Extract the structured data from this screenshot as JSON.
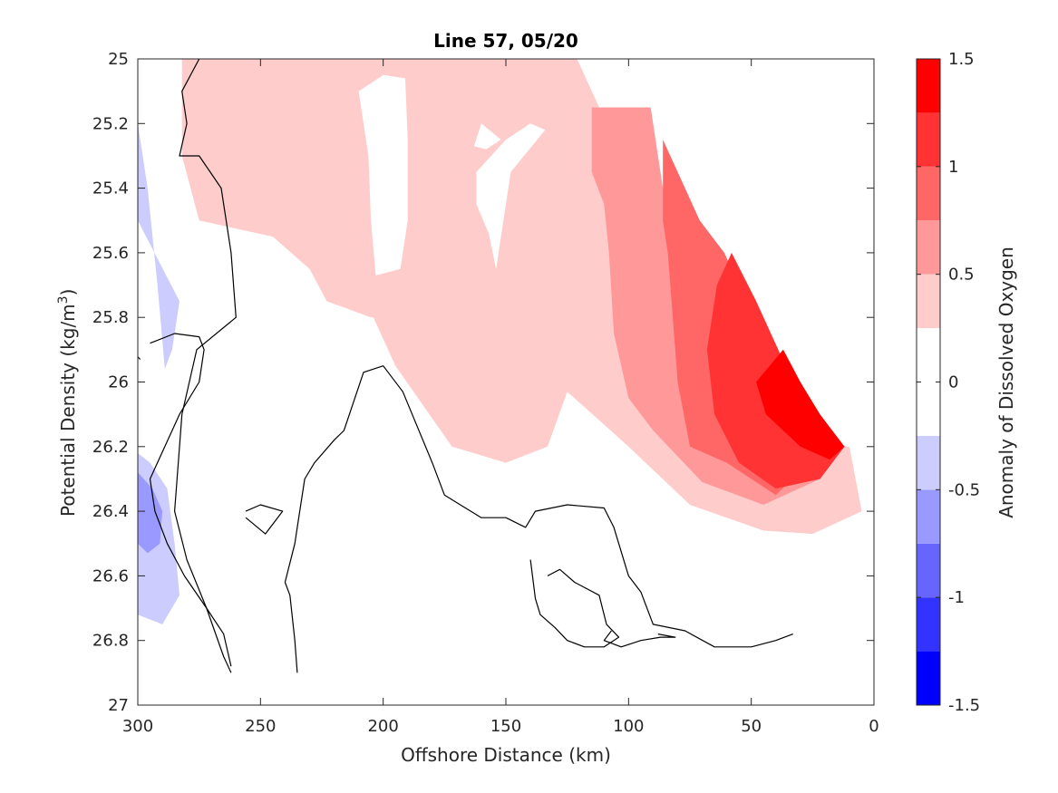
{
  "chart_data": {
    "type": "contour",
    "title": "Line 57, 05/20",
    "xlabel": "Offshore Distance (km)",
    "ylabel_main": "Potential Density (kg/m",
    "ylabel_sup": "3",
    "ylabel_tail": ")",
    "xlim": [
      300,
      0
    ],
    "ylim": [
      25,
      27
    ],
    "x_reversed": true,
    "y_reversed": true,
    "grid": false,
    "xticks": [
      300,
      250,
      200,
      150,
      100,
      50,
      0
    ],
    "xtick_labels": [
      "300",
      "250",
      "200",
      "150",
      "100",
      "50",
      "0"
    ],
    "yticks": [
      25,
      25.2,
      25.4,
      25.6,
      25.8,
      26,
      26.2,
      26.4,
      26.6,
      26.8,
      27
    ],
    "ytick_labels": [
      "25",
      "25.2",
      "25.4",
      "25.6",
      "25.8",
      "26",
      "26.2",
      "26.4",
      "26.6",
      "26.8",
      "27"
    ],
    "colorbar": {
      "label": "Anomaly of Dissolved Oxygen",
      "clim": [
        -1.5,
        1.5
      ],
      "ticks": [
        1.5,
        1,
        0.5,
        0,
        -0.5,
        -1,
        -1.5
      ],
      "tick_labels": [
        "1.5",
        "1",
        "0.5",
        "0",
        "-0.5",
        "-1",
        "-1.5"
      ],
      "levels": [
        -1.5,
        -1.25,
        -1.0,
        -0.75,
        -0.5,
        -0.25,
        0.25,
        0.5,
        0.75,
        1.0,
        1.25,
        1.5
      ],
      "colors": [
        "#0000ff",
        "#3333ff",
        "#6666ff",
        "#9999ff",
        "#ccccff",
        "#ffffff",
        "#ffcccc",
        "#ff9999",
        "#ff6666",
        "#ff3333",
        "#ff0000"
      ]
    },
    "filled_regions": [
      {
        "color": "#ccccff",
        "points": [
          [
            300,
            25.2
          ],
          [
            296,
            25.4
          ],
          [
            292,
            25.7
          ],
          [
            289,
            25.96
          ],
          [
            286,
            25.9
          ],
          [
            283,
            25.75
          ],
          [
            300,
            25.5
          ]
        ]
      },
      {
        "color": "#ccccff",
        "points": [
          [
            300,
            26.22
          ],
          [
            295,
            26.25
          ],
          [
            288,
            26.33
          ],
          [
            285,
            26.5
          ],
          [
            283,
            26.66
          ],
          [
            290,
            26.75
          ],
          [
            300,
            26.72
          ]
        ]
      },
      {
        "color": "#9999ff",
        "points": [
          [
            300,
            26.28
          ],
          [
            294,
            26.33
          ],
          [
            290,
            26.4
          ],
          [
            291,
            26.5
          ],
          [
            296,
            26.53
          ],
          [
            300,
            26.5
          ]
        ]
      },
      {
        "color": "#ffcccc",
        "points": [
          [
            282,
            25.0
          ],
          [
            121,
            25.0
          ],
          [
            112,
            25.15
          ],
          [
            96,
            25.4
          ],
          [
            80,
            25.7
          ],
          [
            65,
            25.9
          ],
          [
            50,
            26.05
          ],
          [
            33,
            26.2
          ],
          [
            10,
            26.2
          ],
          [
            5,
            26.4
          ],
          [
            25,
            26.47
          ],
          [
            45,
            26.46
          ],
          [
            75,
            26.38
          ],
          [
            100,
            26.2
          ],
          [
            125,
            26.03
          ],
          [
            133,
            26.2
          ],
          [
            150,
            26.25
          ],
          [
            172,
            26.2
          ],
          [
            195,
            25.95
          ],
          [
            210,
            25.7
          ],
          [
            213,
            25.35
          ],
          [
            208,
            25.05
          ],
          [
            196,
            25.05
          ],
          [
            190,
            25.2
          ],
          [
            195,
            25.8
          ],
          [
            205,
            25.8
          ],
          [
            223,
            25.75
          ],
          [
            230,
            25.65
          ],
          [
            245,
            25.55
          ],
          [
            275,
            25.5
          ],
          [
            282,
            25.3
          ]
        ]
      },
      {
        "color": "#ffffff",
        "points": [
          [
            191,
            25.06
          ],
          [
            200,
            25.05
          ],
          [
            210,
            25.1
          ],
          [
            206,
            25.3
          ],
          [
            205,
            25.5
          ],
          [
            203,
            25.67
          ],
          [
            193,
            25.65
          ],
          [
            190,
            25.5
          ],
          [
            190,
            25.25
          ]
        ]
      },
      {
        "color": "#ffffff",
        "points": [
          [
            134,
            25.22
          ],
          [
            148,
            25.35
          ],
          [
            154,
            25.65
          ],
          [
            157,
            25.54
          ],
          [
            162,
            25.45
          ],
          [
            162,
            25.35
          ],
          [
            150,
            25.25
          ],
          [
            140,
            25.2
          ]
        ]
      },
      {
        "color": "#ffffff",
        "points": [
          [
            158,
            25.28
          ],
          [
            152,
            25.25
          ],
          [
            160,
            25.2
          ],
          [
            163,
            25.27
          ]
        ]
      },
      {
        "color": "#ff9999",
        "points": [
          [
            115,
            25.15
          ],
          [
            91,
            25.15
          ],
          [
            86,
            25.4
          ],
          [
            78,
            25.55
          ],
          [
            70,
            25.75
          ],
          [
            60,
            25.96
          ],
          [
            47,
            26.1
          ],
          [
            35,
            26.2
          ],
          [
            22,
            26.3
          ],
          [
            45,
            26.38
          ],
          [
            70,
            26.31
          ],
          [
            90,
            26.15
          ],
          [
            100,
            26.05
          ],
          [
            106,
            25.85
          ],
          [
            108,
            25.6
          ],
          [
            110,
            25.45
          ],
          [
            115,
            25.35
          ]
        ]
      },
      {
        "color": "#ff6666",
        "points": [
          [
            86,
            25.25
          ],
          [
            77,
            25.4
          ],
          [
            71,
            25.5
          ],
          [
            61,
            25.6
          ],
          [
            52,
            25.75
          ],
          [
            42,
            25.95
          ],
          [
            32,
            26.1
          ],
          [
            20,
            26.2
          ],
          [
            40,
            26.35
          ],
          [
            60,
            26.25
          ],
          [
            75,
            26.2
          ],
          [
            80,
            26.0
          ],
          [
            82,
            25.8
          ],
          [
            84,
            25.6
          ],
          [
            86,
            25.5
          ]
        ]
      },
      {
        "color": "#ff3333",
        "points": [
          [
            58,
            25.6
          ],
          [
            48,
            25.75
          ],
          [
            36,
            25.95
          ],
          [
            25,
            26.1
          ],
          [
            12,
            26.2
          ],
          [
            22,
            26.3
          ],
          [
            40,
            26.33
          ],
          [
            55,
            26.25
          ],
          [
            65,
            26.1
          ],
          [
            68,
            25.9
          ],
          [
            64,
            25.7
          ]
        ]
      },
      {
        "color": "#ff0000",
        "points": [
          [
            37,
            25.9
          ],
          [
            30,
            26.0
          ],
          [
            22,
            26.1
          ],
          [
            12,
            26.2
          ],
          [
            18,
            26.24
          ],
          [
            30,
            26.2
          ],
          [
            44,
            26.1
          ],
          [
            48,
            26.0
          ]
        ]
      }
    ],
    "contours_zero": [
      {
        "points": [
          [
            275,
            25.0
          ],
          [
            282,
            25.1
          ],
          [
            280,
            25.2
          ],
          [
            283,
            25.3
          ],
          [
            275,
            25.3
          ],
          [
            266,
            25.4
          ],
          [
            262,
            25.6
          ],
          [
            260,
            25.8
          ],
          [
            276,
            25.9
          ],
          [
            282,
            26.1
          ],
          [
            284,
            26.3
          ],
          [
            285,
            26.4
          ],
          [
            280,
            26.55
          ],
          [
            272,
            26.7
          ],
          [
            265,
            26.85
          ],
          [
            262,
            26.9
          ]
        ]
      },
      {
        "points": [
          [
            303,
            25.9
          ],
          [
            299,
            25.93
          ]
        ]
      },
      {
        "points": [
          [
            256,
            26.4
          ],
          [
            250,
            26.38
          ],
          [
            241,
            26.4
          ],
          [
            248,
            26.47
          ],
          [
            256,
            26.42
          ]
        ]
      },
      {
        "points": [
          [
            235,
            26.9
          ],
          [
            236,
            26.8
          ],
          [
            238,
            26.66
          ],
          [
            240,
            26.62
          ],
          [
            236,
            26.5
          ],
          [
            235,
            26.45
          ],
          [
            232,
            26.3
          ],
          [
            228,
            26.25
          ],
          [
            220,
            26.18
          ],
          [
            216,
            26.15
          ],
          [
            208,
            25.97
          ],
          [
            200,
            25.95
          ],
          [
            192,
            26.03
          ],
          [
            180,
            26.25
          ],
          [
            175,
            26.35
          ],
          [
            160,
            26.42
          ],
          [
            150,
            26.42
          ],
          [
            142,
            26.45
          ],
          [
            138,
            26.4
          ],
          [
            125,
            26.38
          ],
          [
            110,
            26.39
          ],
          [
            106,
            26.45
          ],
          [
            100,
            26.6
          ],
          [
            95,
            26.65
          ],
          [
            90,
            26.75
          ],
          [
            77,
            26.77
          ],
          [
            65,
            26.82
          ],
          [
            50,
            26.82
          ],
          [
            40,
            26.8
          ],
          [
            33,
            26.78
          ]
        ]
      },
      {
        "points": [
          [
            262,
            26.88
          ],
          [
            265,
            26.78
          ],
          [
            272,
            26.7
          ],
          [
            281,
            26.6
          ],
          [
            288,
            26.5
          ],
          [
            293,
            26.4
          ],
          [
            295,
            26.3
          ],
          [
            283,
            26.1
          ],
          [
            275,
            26.0
          ],
          [
            273,
            25.9
          ],
          [
            275,
            25.86
          ],
          [
            285,
            25.85
          ],
          [
            295,
            25.88
          ]
        ]
      },
      {
        "points": [
          [
            140,
            26.55
          ],
          [
            138,
            26.67
          ],
          [
            136,
            26.72
          ],
          [
            130,
            26.76
          ],
          [
            125,
            26.8
          ],
          [
            118,
            26.82
          ],
          [
            110,
            26.82
          ],
          [
            104,
            26.79
          ],
          [
            109,
            26.75
          ],
          [
            112,
            26.66
          ],
          [
            122,
            26.62
          ],
          [
            128,
            26.58
          ],
          [
            133,
            26.6
          ]
        ]
      },
      {
        "points": [
          [
            107,
            26.77
          ],
          [
            110,
            26.8
          ],
          [
            103,
            26.82
          ],
          [
            95,
            26.8
          ],
          [
            87,
            26.79
          ],
          [
            81,
            26.79
          ],
          [
            88,
            26.78
          ]
        ]
      }
    ]
  }
}
